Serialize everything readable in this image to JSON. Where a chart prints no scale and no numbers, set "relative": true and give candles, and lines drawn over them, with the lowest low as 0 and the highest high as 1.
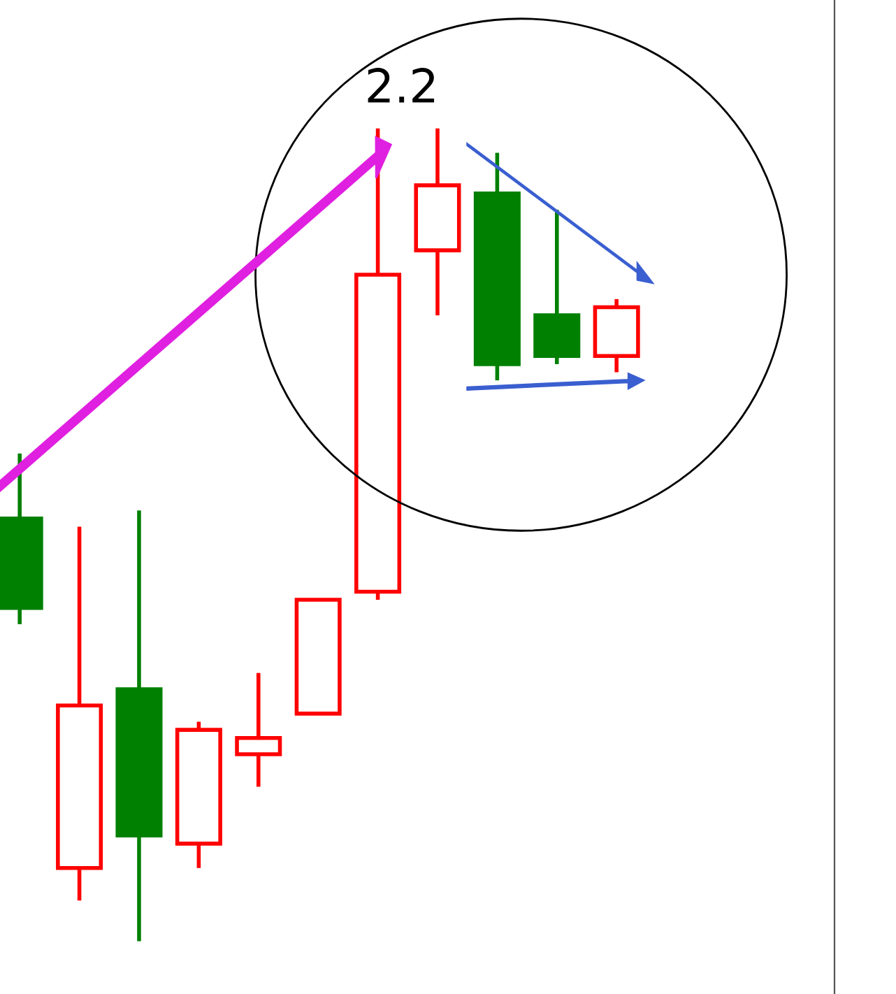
{
  "chart_data": {
    "type": "candlestick",
    "relative": true,
    "categories": [
      null,
      null,
      null,
      null,
      null,
      null,
      null,
      null,
      null,
      null,
      null
    ],
    "ohlc": [
      [
        0.52,
        0.6,
        0.39,
        0.41
      ],
      [
        0.09,
        0.51,
        0.05,
        0.29
      ],
      [
        0.31,
        0.53,
        0.0,
        0.13
      ],
      [
        0.12,
        0.27,
        0.09,
        0.26
      ],
      [
        0.23,
        0.33,
        0.19,
        0.25
      ],
      [
        0.28,
        0.42,
        0.28,
        0.42
      ],
      [
        0.43,
        1.0,
        0.42,
        0.82
      ],
      [
        0.85,
        1.0,
        0.77,
        0.93
      ],
      [
        0.92,
        0.97,
        0.69,
        0.71
      ],
      [
        0.77,
        0.9,
        0.71,
        0.72
      ],
      [
        0.72,
        0.79,
        0.7,
        0.78
      ]
    ],
    "colors": [
      "#008000",
      "#ff0000",
      "#008000",
      "#ff0000",
      "#ff0000",
      "#ff0000",
      "#ff0000",
      "#ff0000",
      "#008000",
      "#008000",
      "#ff0000"
    ],
    "annotations": [
      "2.2"
    ],
    "grid": false
  }
}
